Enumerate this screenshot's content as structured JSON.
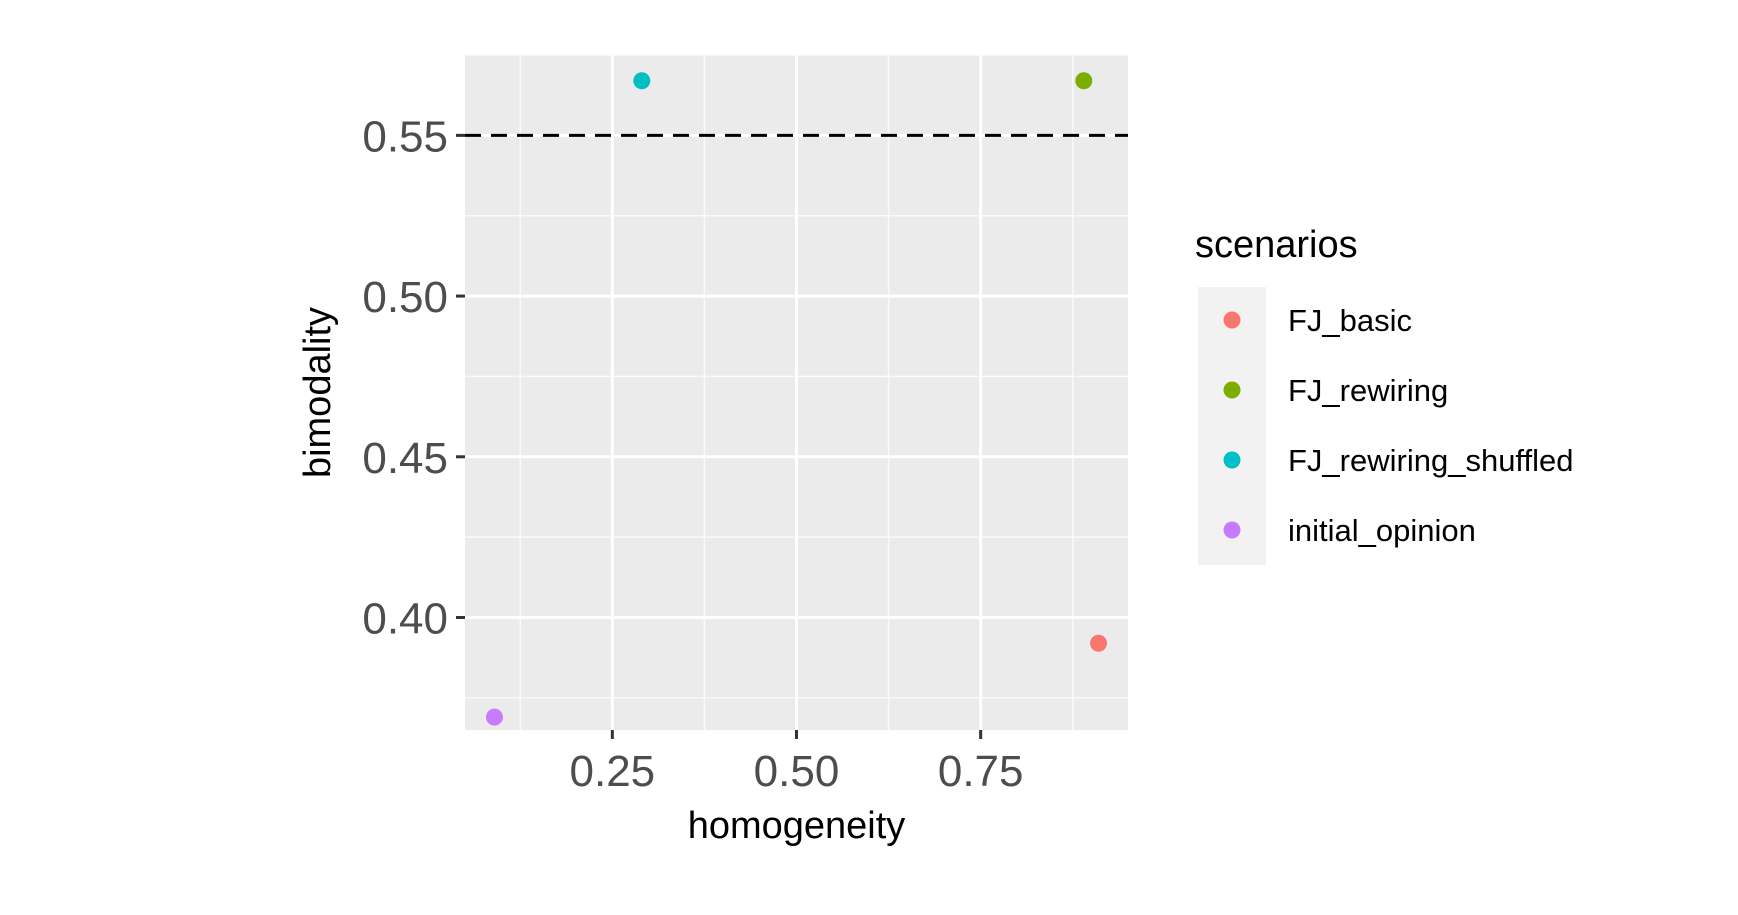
{
  "chart_data": {
    "type": "scatter",
    "xlabel": "homogeneity",
    "ylabel": "bimodality",
    "xlim": [
      0.05,
      0.95
    ],
    "ylim": [
      0.365,
      0.575
    ],
    "x_ticks": [
      0.25,
      0.5,
      0.75
    ],
    "x_tick_labels": [
      "0.25",
      "0.50",
      "0.75"
    ],
    "y_ticks": [
      0.4,
      0.45,
      0.5,
      0.55
    ],
    "y_tick_labels": [
      "0.40",
      "0.45",
      "0.50",
      "0.55"
    ],
    "grid": true,
    "reference_line": {
      "orientation": "horizontal",
      "y": 0.55,
      "style": "dashed",
      "color": "#000000"
    },
    "legend": {
      "title": "scenarios",
      "position": "right"
    },
    "series": [
      {
        "name": "FJ_basic",
        "color": "#F8766D",
        "points": [
          {
            "x": 0.91,
            "y": 0.392
          }
        ]
      },
      {
        "name": "FJ_rewiring",
        "color": "#7CAE00",
        "points": [
          {
            "x": 0.89,
            "y": 0.567
          }
        ]
      },
      {
        "name": "FJ_rewiring_shuffled",
        "color": "#00BFC4",
        "points": [
          {
            "x": 0.29,
            "y": 0.567
          }
        ]
      },
      {
        "name": "initial_opinion",
        "color": "#C77CFF",
        "points": [
          {
            "x": 0.09,
            "y": 0.369
          }
        ]
      }
    ]
  }
}
